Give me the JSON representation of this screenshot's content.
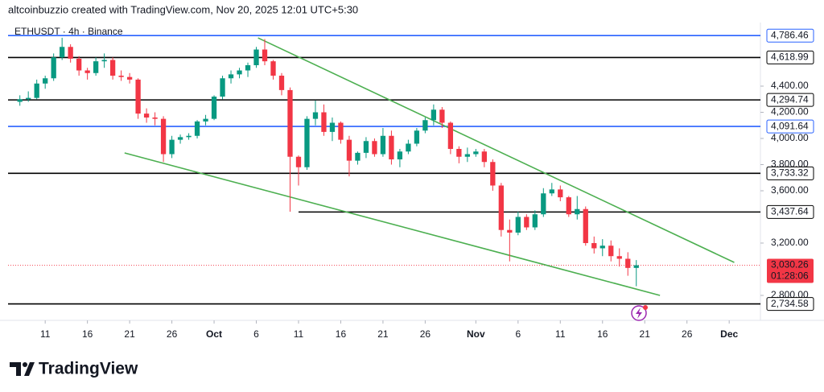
{
  "header": "altcoinbuzzio created with TradingView.com, Nov 20, 2025 12:01 UTC+5:30",
  "logo": "TradingView",
  "chart_data": {
    "type": "candlestick",
    "title": "ETHUSDT · 4h · Binance",
    "up_color": "#089981",
    "down_color": "#f23645",
    "x": [
      8,
      9,
      10,
      11,
      12,
      13,
      14,
      15,
      16,
      17,
      18,
      19,
      20,
      21,
      22,
      23,
      24,
      25,
      26,
      27,
      28,
      29,
      30,
      31,
      32,
      33,
      34,
      35,
      36,
      37,
      38,
      39,
      40,
      41,
      42,
      43,
      44,
      45,
      46,
      47,
      48,
      49,
      50,
      51,
      52,
      53,
      54,
      55,
      56,
      57,
      58,
      59,
      60,
      61,
      62,
      63,
      64,
      65,
      66,
      67,
      68,
      69,
      70,
      71,
      72,
      73,
      74,
      75,
      76,
      77,
      78,
      79,
      80,
      81
    ],
    "open": [
      4280,
      4300,
      4310,
      4420,
      4460,
      4620,
      4700,
      4610,
      4520,
      4500,
      4590,
      4600,
      4480,
      4470,
      4450,
      4190,
      4160,
      4150,
      3880,
      3990,
      4010,
      4020,
      4130,
      4150,
      4320,
      4460,
      4490,
      4520,
      4560,
      4680,
      4590,
      4480,
      4370,
      3860,
      3780,
      4150,
      4200,
      4050,
      4120,
      3990,
      3830,
      3890,
      3980,
      3880,
      4020,
      3840,
      3900,
      3960,
      4060,
      4140,
      4220,
      4120,
      3920,
      3860,
      3880,
      3900,
      3820,
      3640,
      3300,
      3280,
      3400,
      3320,
      3420,
      3580,
      3610,
      3550,
      3420,
      3460,
      3200,
      3160,
      3180,
      3100,
      3080,
      3010
    ],
    "high": [
      4330,
      4360,
      4450,
      4480,
      4650,
      4770,
      4720,
      4630,
      4540,
      4620,
      4650,
      4620,
      4520,
      4500,
      4460,
      4230,
      4200,
      4170,
      4020,
      4030,
      4040,
      4140,
      4180,
      4330,
      4480,
      4520,
      4540,
      4580,
      4700,
      4760,
      4600,
      4500,
      4390,
      3870,
      4170,
      4290,
      4260,
      4160,
      4130,
      4020,
      3900,
      4010,
      4000,
      4080,
      4060,
      3920,
      3990,
      4080,
      4160,
      4260,
      4240,
      4130,
      3940,
      3930,
      3920,
      3920,
      3840,
      3660,
      3380,
      3440,
      3420,
      3450,
      3620,
      3660,
      3640,
      3560,
      3560,
      3480,
      3250,
      3230,
      3220,
      3160,
      3130,
      3070
    ],
    "low": [
      4250,
      4280,
      4300,
      4380,
      4440,
      4600,
      4580,
      4480,
      4450,
      4480,
      4540,
      4450,
      4440,
      4420,
      4150,
      4120,
      4100,
      3820,
      3850,
      3960,
      3990,
      4000,
      4100,
      4140,
      4300,
      4420,
      4460,
      4470,
      4540,
      4560,
      4450,
      4330,
      3440,
      3640,
      3760,
      4100,
      4020,
      3980,
      3960,
      3710,
      3800,
      3850,
      3860,
      3860,
      3800,
      3780,
      3880,
      3940,
      4040,
      4100,
      4080,
      3880,
      3810,
      3820,
      3860,
      3780,
      3600,
      3250,
      3060,
      3260,
      3300,
      3300,
      3400,
      3560,
      3520,
      3400,
      3380,
      3180,
      3120,
      3100,
      3060,
      3020,
      2950,
      2870
    ],
    "close": [
      4300,
      4310,
      4420,
      4460,
      4620,
      4700,
      4610,
      4520,
      4500,
      4590,
      4600,
      4480,
      4470,
      4450,
      4190,
      4160,
      4150,
      3880,
      3990,
      4010,
      4020,
      4130,
      4150,
      4320,
      4460,
      4490,
      4520,
      4560,
      4680,
      4590,
      4480,
      4370,
      3860,
      3780,
      4150,
      4200,
      4050,
      4120,
      3990,
      3830,
      3890,
      3980,
      3880,
      4020,
      3840,
      3900,
      3960,
      4060,
      4140,
      4220,
      4120,
      3920,
      3860,
      3880,
      3900,
      3820,
      3640,
      3300,
      3280,
      3400,
      3320,
      3420,
      3580,
      3610,
      3550,
      3420,
      3460,
      3200,
      3160,
      3180,
      3100,
      3080,
      3010,
      3030.26
    ],
    "xlim": [
      6.6,
      95.7
    ],
    "xticks": [
      11,
      16,
      21,
      26,
      {
        "value": 31,
        "label": "Oct"
      },
      {
        "value": 36,
        "label": "6"
      },
      {
        "value": 41,
        "label": "11"
      },
      {
        "value": 46,
        "label": "16"
      },
      {
        "value": 51,
        "label": "21"
      },
      {
        "value": 56,
        "label": "26"
      },
      {
        "value": 62,
        "label": "Nov"
      },
      {
        "value": 67,
        "label": "6"
      },
      {
        "value": 72,
        "label": "11"
      },
      {
        "value": 77,
        "label": "16"
      },
      {
        "value": 82,
        "label": "21"
      },
      {
        "value": 87,
        "label": "26"
      },
      {
        "value": 92,
        "label": "Dec"
      }
    ],
    "ylim": [
      2609,
      4874
    ],
    "yticks": [
      {
        "value": 2800,
        "label": "2,800.00"
      },
      {
        "value": 3200,
        "label": "3,200.00"
      },
      {
        "value": 3600,
        "label": "3,600.00"
      },
      {
        "value": 3800,
        "label": "3,800.00"
      },
      {
        "value": 4000,
        "label": "4,000.00"
      },
      {
        "value": 4200,
        "label": "4,200.00"
      },
      {
        "value": 4400,
        "label": "4,400.00"
      }
    ],
    "levels": [
      {
        "value": 4786.46,
        "label": "4,786.46",
        "color": "#2962ff"
      },
      {
        "value": 4618.99,
        "label": "4,618.99",
        "color": "#000000"
      },
      {
        "value": 4294.74,
        "label": "4,294.74",
        "color": "#000000"
      },
      {
        "value": 4091.64,
        "label": "4,091.64",
        "color": "#2962ff"
      },
      {
        "value": 3733.32,
        "label": "3,733.32",
        "color": "#000000"
      },
      {
        "value": 3437.64,
        "label": "3,437.64",
        "color": "#000000",
        "start": 41
      },
      {
        "value": 2734.58,
        "label": "2,734.58",
        "color": "#000000"
      }
    ],
    "trendlines": [
      {
        "x": [
          36.2,
          92.6
        ],
        "y": [
          4769,
          3052
        ],
        "color": "#4caf50"
      },
      {
        "x": [
          20.4,
          83.8
        ],
        "y": [
          3889,
          2800
        ],
        "color": "#4caf50"
      }
    ],
    "current": {
      "value": 3030.26,
      "label": "3,030.26",
      "countdown": "01:28:06",
      "color": "#f23645"
    }
  }
}
